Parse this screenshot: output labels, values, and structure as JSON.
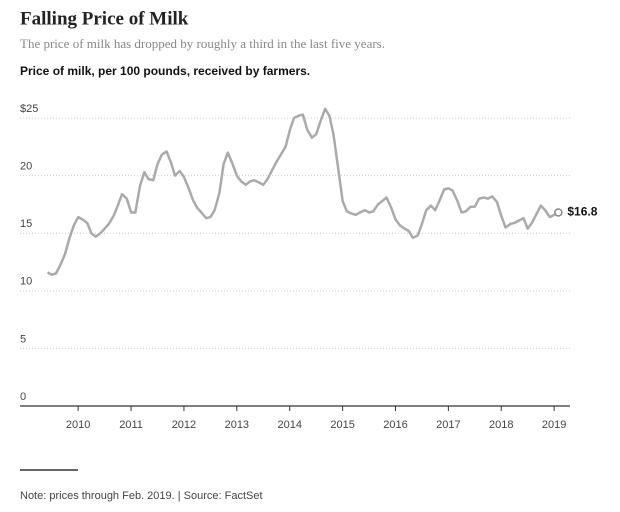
{
  "chart_data": {
    "type": "line",
    "title": "Falling Price of Milk",
    "subtitle": "The price of milk has dropped by roughly a third in the last five years.",
    "y_label": "Price of milk, per 100 pounds, received by farmers.",
    "note": "Note: prices through Feb. 2019. | Source: FactSet",
    "xlim": [
      2008.9,
      2019.3
    ],
    "xticks": [
      2010,
      2011,
      2012,
      2013,
      2014,
      2015,
      2016,
      2017,
      2018,
      2019
    ],
    "ylim": [
      0,
      27
    ],
    "yticks": [
      0,
      5,
      10,
      15,
      20,
      {
        "value": 25,
        "label": "$25"
      }
    ],
    "grid": true,
    "color": "#aaaaaa",
    "x": [
      2009.42,
      2009.5,
      2009.58,
      2009.67,
      2009.75,
      2009.83,
      2009.92,
      2010.0,
      2010.08,
      2010.17,
      2010.25,
      2010.33,
      2010.42,
      2010.5,
      2010.58,
      2010.67,
      2010.75,
      2010.83,
      2010.92,
      2011.0,
      2011.08,
      2011.17,
      2011.25,
      2011.33,
      2011.42,
      2011.5,
      2011.58,
      2011.67,
      2011.75,
      2011.83,
      2011.92,
      2012.0,
      2012.08,
      2012.17,
      2012.25,
      2012.33,
      2012.42,
      2012.5,
      2012.58,
      2012.67,
      2012.75,
      2012.83,
      2012.92,
      2013.0,
      2013.08,
      2013.17,
      2013.25,
      2013.33,
      2013.42,
      2013.5,
      2013.58,
      2013.67,
      2013.75,
      2013.83,
      2013.92,
      2014.0,
      2014.08,
      2014.17,
      2014.25,
      2014.33,
      2014.42,
      2014.5,
      2014.58,
      2014.67,
      2014.75,
      2014.83,
      2014.92,
      2015.0,
      2015.08,
      2015.17,
      2015.25,
      2015.33,
      2015.42,
      2015.5,
      2015.58,
      2015.67,
      2015.75,
      2015.83,
      2015.92,
      2016.0,
      2016.08,
      2016.17,
      2016.25,
      2016.33,
      2016.42,
      2016.5,
      2016.58,
      2016.67,
      2016.75,
      2016.83,
      2016.92,
      2017.0,
      2017.08,
      2017.17,
      2017.25,
      2017.33,
      2017.42,
      2017.5,
      2017.58,
      2017.67,
      2017.75,
      2017.83,
      2017.92,
      2018.0,
      2018.08,
      2018.17,
      2018.25,
      2018.33,
      2018.42,
      2018.5,
      2018.58,
      2018.67,
      2018.75,
      2018.83,
      2018.92,
      2019.0,
      2019.08
    ],
    "values": [
      11.6,
      11.4,
      11.5,
      12.3,
      13.2,
      14.5,
      15.7,
      16.4,
      16.2,
      15.9,
      15.0,
      14.7,
      15.0,
      15.4,
      15.8,
      16.5,
      17.4,
      18.4,
      18.0,
      16.8,
      16.8,
      19.1,
      20.3,
      19.7,
      19.6,
      21.0,
      21.8,
      22.1,
      21.2,
      20.0,
      20.4,
      19.9,
      19.0,
      17.9,
      17.2,
      16.8,
      16.3,
      16.4,
      17.0,
      18.5,
      21.0,
      22.0,
      21.0,
      20.0,
      19.5,
      19.2,
      19.5,
      19.6,
      19.4,
      19.2,
      19.7,
      20.5,
      21.2,
      21.8,
      22.5,
      23.9,
      25.0,
      25.2,
      25.3,
      24.0,
      23.3,
      23.6,
      24.7,
      25.8,
      25.2,
      23.5,
      20.5,
      17.8,
      16.9,
      16.7,
      16.6,
      16.8,
      17.0,
      16.8,
      16.9,
      17.5,
      17.8,
      18.1,
      17.2,
      16.2,
      15.7,
      15.4,
      15.2,
      14.6,
      14.8,
      15.8,
      17.0,
      17.4,
      17.0,
      17.8,
      18.8,
      18.9,
      18.7,
      17.8,
      16.8,
      16.9,
      17.3,
      17.3,
      18.0,
      18.1,
      18.0,
      18.2,
      17.7,
      16.5,
      15.5,
      15.8,
      15.9,
      16.1,
      16.3,
      15.4,
      15.9,
      16.7,
      17.4,
      17.0,
      16.4,
      16.6,
      16.8
    ],
    "annotations": [
      {
        "x": 2019.08,
        "y": 16.8,
        "label": "$16.8"
      }
    ]
  }
}
